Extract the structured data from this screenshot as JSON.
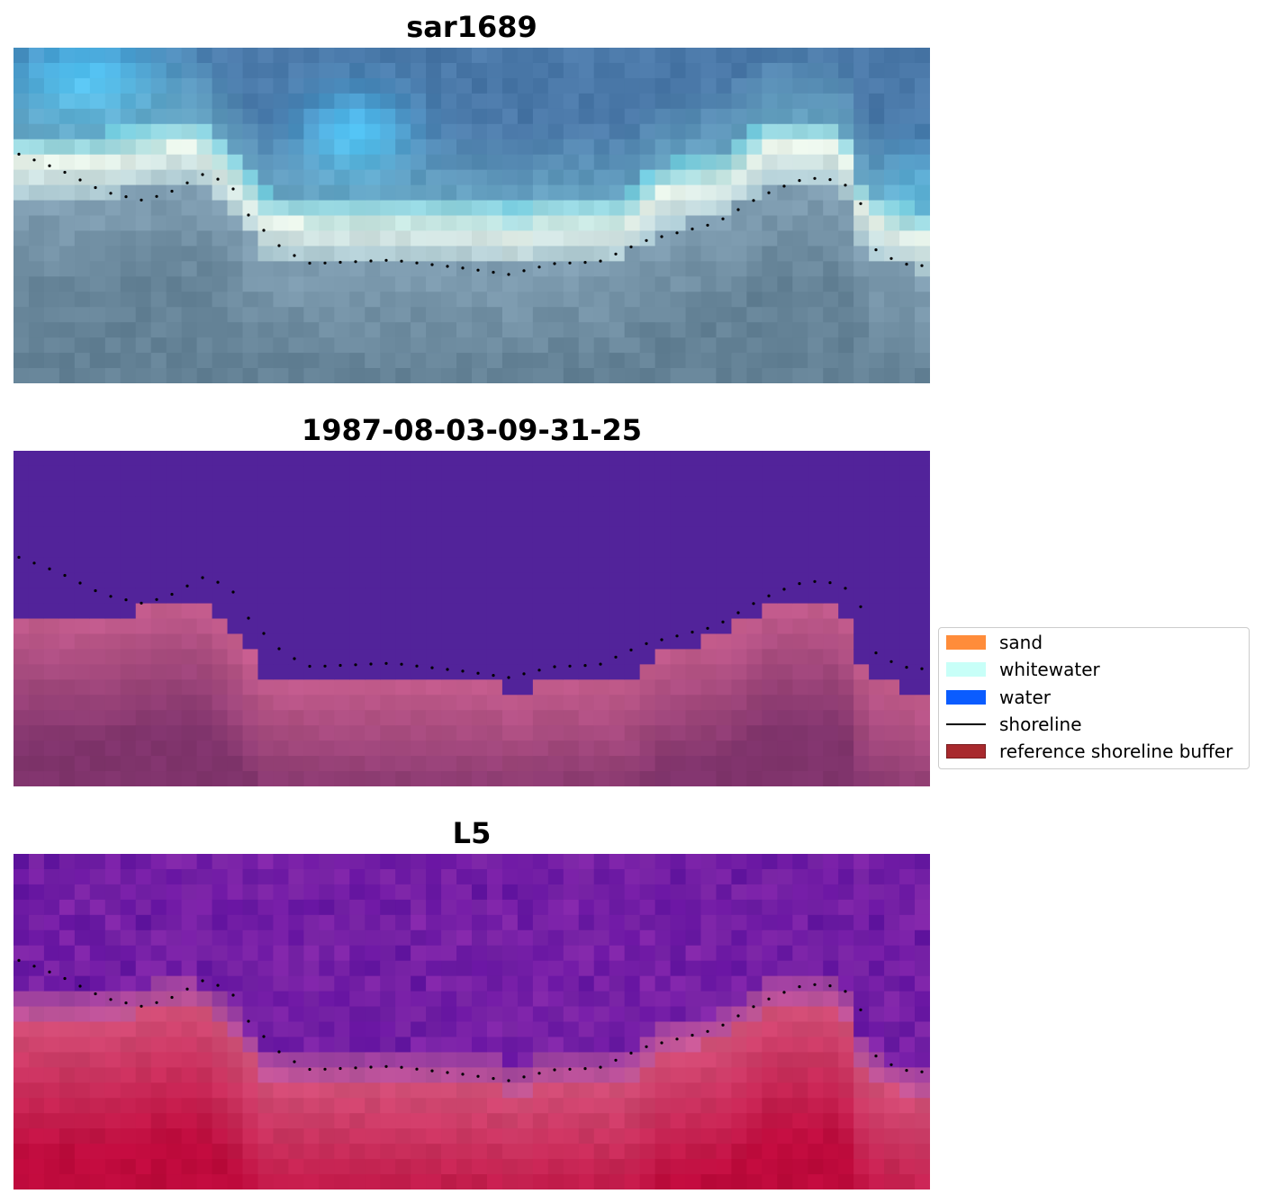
{
  "panels": [
    {
      "title": "sar1689",
      "style": "rgb"
    },
    {
      "title": "1987-08-03-09-31-25",
      "style": "classes"
    },
    {
      "title": "L5",
      "style": "index"
    }
  ],
  "legend": {
    "items": [
      {
        "label": "sand",
        "kind": "patch",
        "color": "#ff8c3a"
      },
      {
        "label": "whitewater",
        "kind": "patch",
        "color": "#c8fff8"
      },
      {
        "label": "water",
        "kind": "patch",
        "color": "#0a5cff"
      },
      {
        "label": "shoreline",
        "kind": "line",
        "color": "#000000"
      },
      {
        "label": "reference shoreline buffer",
        "kind": "patch",
        "color": "#a8292d",
        "edge": "#7a1c1f"
      }
    ]
  },
  "colors": {
    "water_class": "#52239a",
    "sand_pink": "#c05a86",
    "deep_water_rgb": "#4a74a8",
    "light_blue_rgb": "#4cc2f5"
  }
}
